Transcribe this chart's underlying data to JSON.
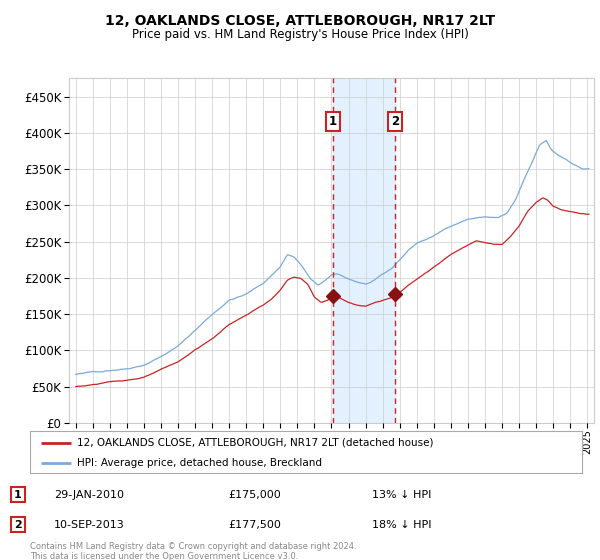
{
  "title": "12, OAKLANDS CLOSE, ATTLEBOROUGH, NR17 2LT",
  "subtitle": "Price paid vs. HM Land Registry's House Price Index (HPI)",
  "legend_line1": "12, OAKLANDS CLOSE, ATTLEBOROUGH, NR17 2LT (detached house)",
  "legend_line2": "HPI: Average price, detached house, Breckland",
  "annotation1_date": "29-JAN-2010",
  "annotation1_price": "£175,000",
  "annotation1_hpi": "13% ↓ HPI",
  "annotation2_date": "10-SEP-2013",
  "annotation2_price": "£177,500",
  "annotation2_hpi": "18% ↓ HPI",
  "footer": "Contains HM Land Registry data © Crown copyright and database right 2024.\nThis data is licensed under the Open Government Licence v3.0.",
  "hpi_color": "#7aaadd",
  "sale_color": "#cc2222",
  "marker_color": "#881111",
  "vline_color": "#cc2222",
  "shade_color": "#ddeeff",
  "ylim": [
    0,
    475000
  ],
  "yticks": [
    0,
    50000,
    100000,
    150000,
    200000,
    250000,
    300000,
    350000,
    400000,
    450000
  ],
  "sale1_year": 2010.08,
  "sale1_value": 175000,
  "sale2_year": 2013.71,
  "sale2_value": 177500,
  "background_color": "#ffffff",
  "grid_color": "#cccccc"
}
